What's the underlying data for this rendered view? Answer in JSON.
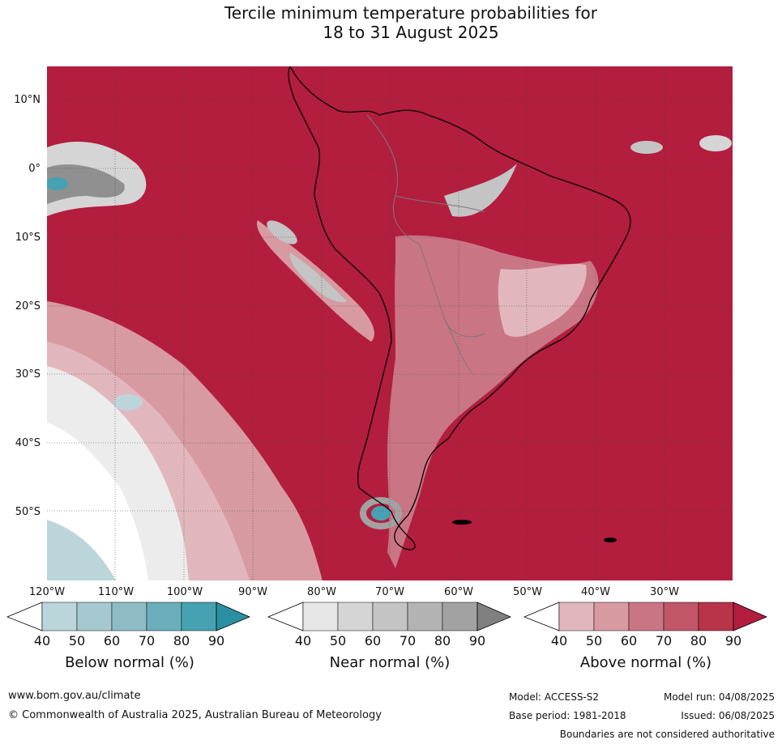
{
  "title_line1": "Tercile minimum temperature probabilities for",
  "title_line2": "18 to 31 August 2025",
  "latitude_labels": [
    "10°N",
    "0°",
    "10°S",
    "20°S",
    "30°S",
    "40°S",
    "50°S"
  ],
  "longitude_labels": [
    "120°W",
    "110°W",
    "100°W",
    "90°W",
    "80°W",
    "70°W",
    "60°W",
    "50°W",
    "40°W",
    "30°W"
  ],
  "legends": [
    {
      "caption": "Below normal (%)",
      "ticks": [
        "40",
        "50",
        "60",
        "70",
        "80",
        "90"
      ],
      "colors": [
        "#ffffff",
        "#bcd5db",
        "#a6c8cf",
        "#8dbcc5",
        "#6baebb",
        "#46a2b3",
        "#2b8fa2"
      ]
    },
    {
      "caption": "Near normal (%)",
      "ticks": [
        "40",
        "50",
        "60",
        "70",
        "80",
        "90"
      ],
      "colors": [
        "#ffffff",
        "#e6e6e6",
        "#d5d5d5",
        "#c4c4c4",
        "#b3b3b3",
        "#a2a2a2",
        "#808080"
      ]
    },
    {
      "caption": "Above normal (%)",
      "ticks": [
        "40",
        "50",
        "60",
        "70",
        "80",
        "90"
      ],
      "colors": [
        "#ffffff",
        "#e1b7bd",
        "#d79aa1",
        "#ca7584",
        "#c05668",
        "#b93448",
        "#b31d3e"
      ]
    }
  ],
  "footer": {
    "website": "www.bom.gov.au/climate",
    "copyright": "© Commonwealth of Australia 2025, Australian Bureau of Meteorology",
    "model": "Model: ACCESS-S2",
    "base_period": "Base period: 1981-2018",
    "model_run": "Model run: 04/08/2025",
    "issued": "Issued: 06/08/2025",
    "disclaimer": "Boundaries are not considered authoritative"
  }
}
